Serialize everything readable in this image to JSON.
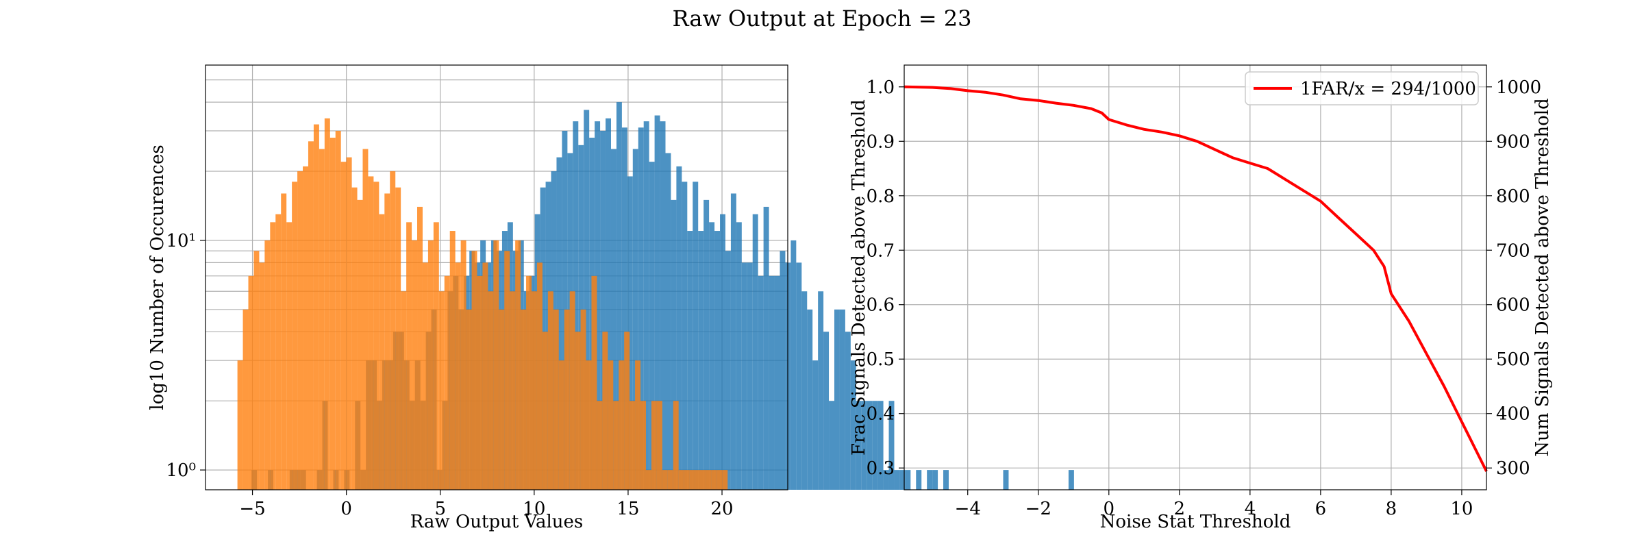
{
  "figure": {
    "title": "Raw Output at Epoch = 23"
  },
  "colors": {
    "signal": "#1f77b4",
    "noise": "#ff7f0e",
    "curve": "#ff0000",
    "grid": "#b0b0b0"
  },
  "chart_data": [
    {
      "type": "bar",
      "title": "",
      "xlabel": "Raw Output Values",
      "ylabel": "log10 Number of Occurences",
      "yscale": "log",
      "xlim": [
        -7.5,
        23.5
      ],
      "ylim": [
        0.82,
        58
      ],
      "xticks": [
        -5,
        0,
        5,
        10,
        15,
        20
      ],
      "yticks": [
        {
          "value": 1,
          "label": "10⁰"
        },
        {
          "value": 10,
          "label": "10¹"
        }
      ],
      "grid": true,
      "bin_width": 0.29,
      "series": [
        {
          "x0": -5.05,
          "alpha": 0.8,
          "counts": [
            1,
            0,
            0,
            1,
            0,
            0,
            0,
            1,
            1,
            1,
            0,
            0,
            1,
            2,
            0,
            1,
            0,
            1,
            0,
            2,
            1,
            3,
            3,
            2,
            3,
            3,
            4,
            4,
            3,
            2,
            3,
            2,
            4,
            5,
            1,
            2,
            6,
            7,
            5,
            7,
            9,
            8,
            10,
            8,
            10,
            9,
            11,
            12,
            9,
            10,
            6,
            7,
            13,
            17,
            18,
            20,
            23,
            30,
            24,
            33,
            26,
            37,
            28,
            33,
            30,
            34,
            25,
            40,
            31,
            19,
            25,
            31,
            33,
            22,
            35,
            33,
            24,
            15,
            21,
            18,
            11,
            18,
            11,
            15,
            12,
            11,
            13,
            9,
            16,
            12,
            8,
            8,
            13,
            7,
            14,
            7,
            7,
            9,
            8,
            10,
            8,
            6,
            5,
            3,
            6,
            4,
            2,
            5,
            5,
            4,
            3,
            2,
            2,
            2,
            2,
            2,
            1,
            2,
            1,
            1,
            1,
            0,
            1,
            0,
            1,
            1,
            0,
            1,
            0,
            0,
            0,
            0,
            0,
            0,
            0,
            0,
            0,
            0,
            1,
            0,
            0,
            0,
            0,
            0,
            0,
            0,
            0,
            0,
            0,
            0,
            1
          ]
        },
        {
          "x0": -5.8,
          "alpha": 0.8,
          "counts": [
            3,
            5,
            7,
            9,
            8,
            10,
            12,
            13,
            16,
            12,
            18,
            20,
            21,
            27,
            32,
            25,
            34,
            28,
            30,
            22,
            23,
            17,
            15,
            25,
            19,
            18,
            13,
            16,
            20,
            17,
            6,
            12,
            10,
            14,
            8,
            10,
            12,
            6,
            7,
            11,
            8,
            10,
            5,
            9,
            7,
            8,
            6,
            10,
            5,
            9,
            6,
            10,
            5,
            7,
            6,
            8,
            4,
            6,
            5,
            3,
            5,
            6,
            4,
            5,
            3,
            7,
            2,
            4,
            3,
            2,
            3,
            4,
            2,
            3,
            2,
            1,
            2,
            2,
            1,
            1,
            2,
            1,
            1,
            1,
            1,
            1,
            1,
            1,
            1,
            1
          ]
        }
      ]
    },
    {
      "type": "line",
      "title": "",
      "xlabel": "Noise Stat Threshold",
      "ylabel": "Frac Signals Detected above Threshold",
      "ylabel_right": "Num Signals Detected above Threshold",
      "xlim": [
        -5.8,
        10.7
      ],
      "ylim": [
        0.26,
        1.04
      ],
      "ylim_right": [
        260,
        1040
      ],
      "xticks": [
        -4,
        -2,
        0,
        2,
        4,
        6,
        8,
        10
      ],
      "yticks": [
        0.3,
        0.4,
        0.5,
        0.6,
        0.7,
        0.8,
        0.9,
        1.0
      ],
      "yticks_right": [
        300,
        400,
        500,
        600,
        700,
        800,
        900,
        1000
      ],
      "grid": true,
      "legend_position": "top-right",
      "series": [
        {
          "name": "1FAR/x = 294/1000",
          "x": [
            -5.8,
            -5.0,
            -4.5,
            -4.0,
            -3.5,
            -3.0,
            -2.5,
            -2.0,
            -1.5,
            -1.0,
            -0.5,
            -0.2,
            0.0,
            0.5,
            1.0,
            1.5,
            2.0,
            2.5,
            3.0,
            3.5,
            4.0,
            4.5,
            5.0,
            5.5,
            6.0,
            6.5,
            7.0,
            7.5,
            7.8,
            8.0,
            8.5,
            9.0,
            9.5,
            10.0,
            10.7
          ],
          "y": [
            1.0,
            0.999,
            0.997,
            0.993,
            0.99,
            0.985,
            0.978,
            0.975,
            0.97,
            0.966,
            0.96,
            0.952,
            0.94,
            0.93,
            0.922,
            0.917,
            0.91,
            0.9,
            0.885,
            0.87,
            0.86,
            0.85,
            0.83,
            0.81,
            0.79,
            0.76,
            0.73,
            0.7,
            0.67,
            0.62,
            0.57,
            0.51,
            0.45,
            0.385,
            0.294
          ]
        }
      ]
    }
  ]
}
